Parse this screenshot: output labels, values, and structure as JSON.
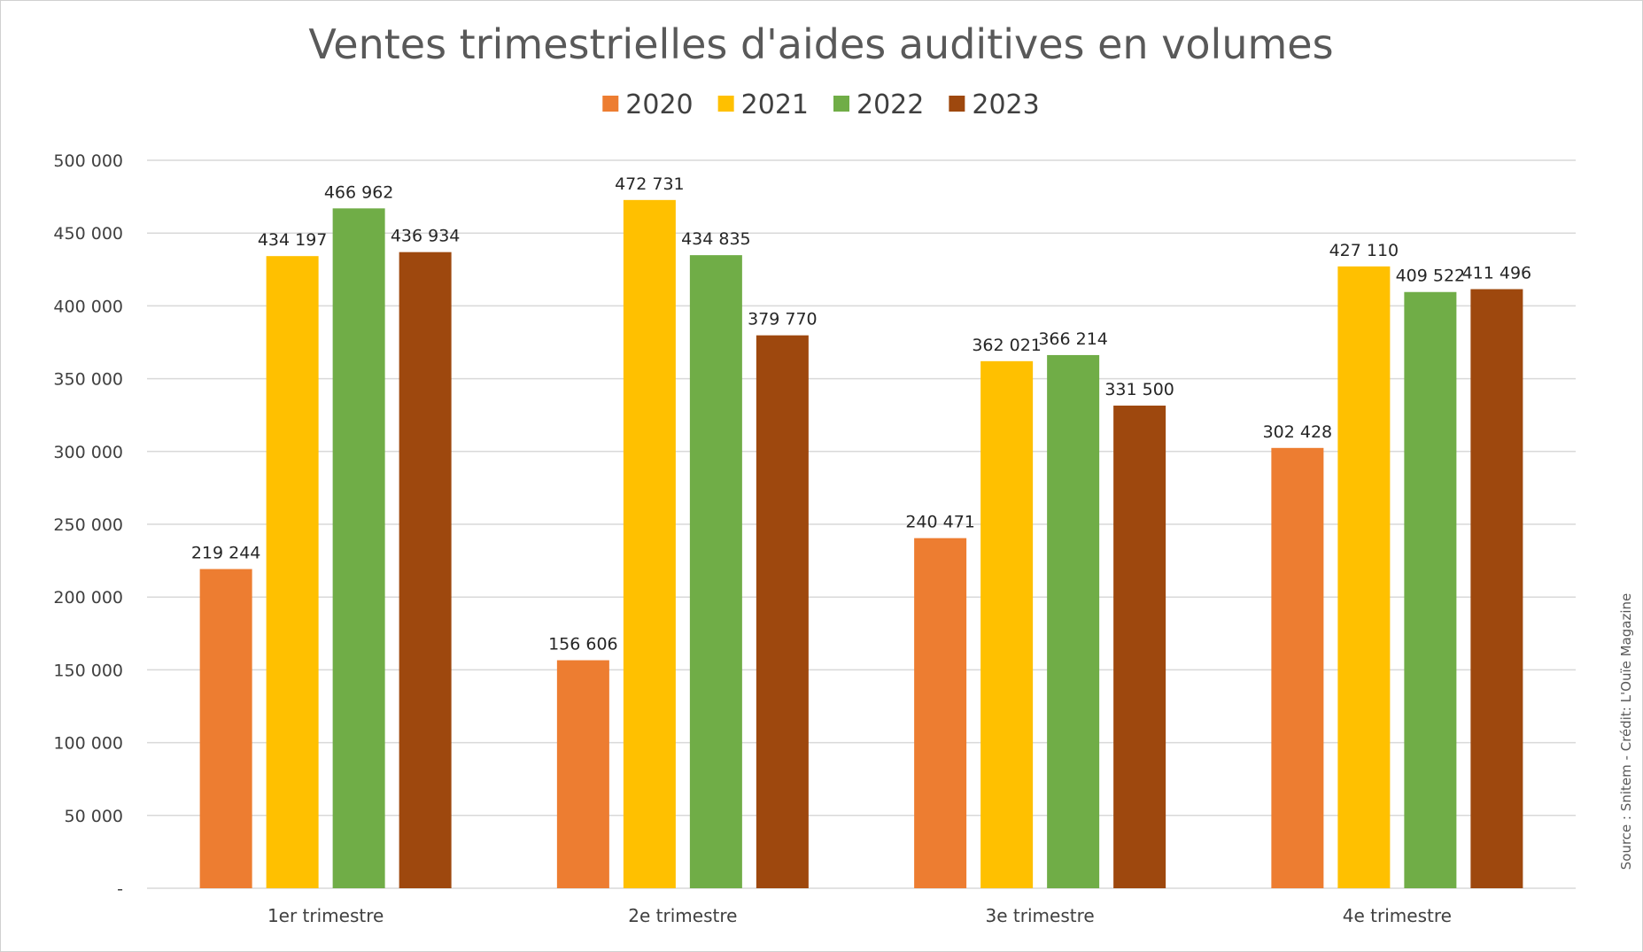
{
  "chart_data": {
    "type": "bar",
    "title": "Ventes trimestrielles d'aides auditives en volumes",
    "categories": [
      "1er trimestre",
      "2e trimestre",
      "3e trimestre",
      "4e trimestre"
    ],
    "series": [
      {
        "name": "2020",
        "color": "#ED7D31",
        "values": [
          219244,
          156606,
          240471,
          302428
        ],
        "labels": [
          "219 244",
          "156 606",
          "240 471",
          "302 428"
        ]
      },
      {
        "name": "2021",
        "color": "#FFC000",
        "values": [
          434197,
          472731,
          362021,
          427110
        ],
        "labels": [
          "434 197",
          "472 731",
          "362 021",
          "427 110"
        ]
      },
      {
        "name": "2022",
        "color": "#70AD47",
        "values": [
          466962,
          434835,
          366214,
          409522
        ],
        "labels": [
          "466 962",
          "434 835",
          "366 214",
          "409 522"
        ]
      },
      {
        "name": "2023",
        "color": "#9E480E",
        "values": [
          436934,
          379770,
          331500,
          411496
        ],
        "labels": [
          "436 934",
          "379 770",
          "331 500",
          "411 496"
        ]
      }
    ],
    "ylim": [
      0,
      500000
    ],
    "yticks": [
      0,
      50000,
      100000,
      150000,
      200000,
      250000,
      300000,
      350000,
      400000,
      450000,
      500000
    ],
    "ytick_labels": [
      "-",
      "50 000",
      "100 000",
      "150 000",
      "200 000",
      "250 000",
      "300 000",
      "350 000",
      "400 000",
      "450 000",
      "500 000"
    ],
    "grid": true,
    "legend_position": "top",
    "gridline_color": "#D9D9D9"
  },
  "source": "Source : Snitem - Crédit: L'Ouïe Magazine"
}
